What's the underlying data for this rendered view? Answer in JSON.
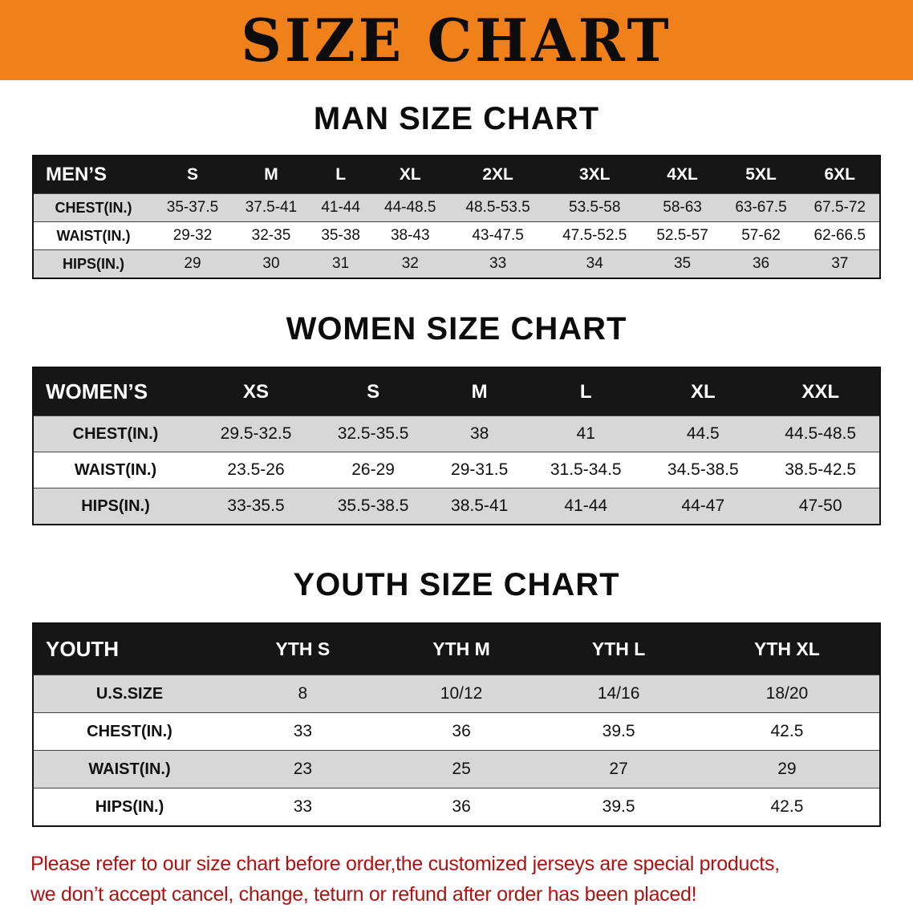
{
  "banner": {
    "title": "SIZE CHART"
  },
  "colors": {
    "banner_bg": "#f0801a",
    "table_header_bg": "#161616",
    "row_stripe_gray": "#d7d7d7",
    "footer_text": "#b01111"
  },
  "sections": [
    {
      "heading": "MAN SIZE CHART",
      "table": {
        "header": [
          "MEN’S",
          "S",
          "M",
          "L",
          "XL",
          "2XL",
          "3XL",
          "4XL",
          "5XL",
          "6XL"
        ],
        "rows": [
          [
            "CHEST(IN.)",
            "35-37.5",
            "37.5-41",
            "41-44",
            "44-48.5",
            "48.5-53.5",
            "53.5-58",
            "58-63",
            "63-67.5",
            "67.5-72"
          ],
          [
            "WAIST(IN.)",
            "29-32",
            "32-35",
            "35-38",
            "38-43",
            "43-47.5",
            "47.5-52.5",
            "52.5-57",
            "57-62",
            "62-66.5"
          ],
          [
            "HIPS(IN.)",
            "29",
            "30",
            "31",
            "32",
            "33",
            "34",
            "35",
            "36",
            "37"
          ]
        ]
      }
    },
    {
      "heading": "WOMEN SIZE CHART",
      "table": {
        "header": [
          "WOMEN’S",
          "XS",
          "S",
          "M",
          "L",
          "XL",
          "XXL"
        ],
        "rows": [
          [
            "CHEST(IN.)",
            "29.5-32.5",
            "32.5-35.5",
            "38",
            "41",
            "44.5",
            "44.5-48.5"
          ],
          [
            "WAIST(IN.)",
            "23.5-26",
            "26-29",
            "29-31.5",
            "31.5-34.5",
            "34.5-38.5",
            "38.5-42.5"
          ],
          [
            "HIPS(IN.)",
            "33-35.5",
            "35.5-38.5",
            "38.5-41",
            "41-44",
            "44-47",
            "47-50"
          ]
        ]
      }
    },
    {
      "heading": "YOUTH SIZE CHART",
      "table": {
        "header": [
          "YOUTH",
          "YTH S",
          "YTH M",
          "YTH L",
          "YTH XL"
        ],
        "rows": [
          [
            "U.S.SIZE",
            "8",
            "10/12",
            "14/16",
            "18/20"
          ],
          [
            "CHEST(IN.)",
            "33",
            "36",
            "39.5",
            "42.5"
          ],
          [
            "WAIST(IN.)",
            "23",
            "25",
            "27",
            "29"
          ],
          [
            "HIPS(IN.)",
            "33",
            "36",
            "39.5",
            "42.5"
          ]
        ]
      }
    }
  ],
  "footer": {
    "lines": [
      "Please refer to our size chart before order,the customized jerseys are special products,",
      "we don’t accept cancel, change, teturn or refund after order has been placed!"
    ]
  }
}
